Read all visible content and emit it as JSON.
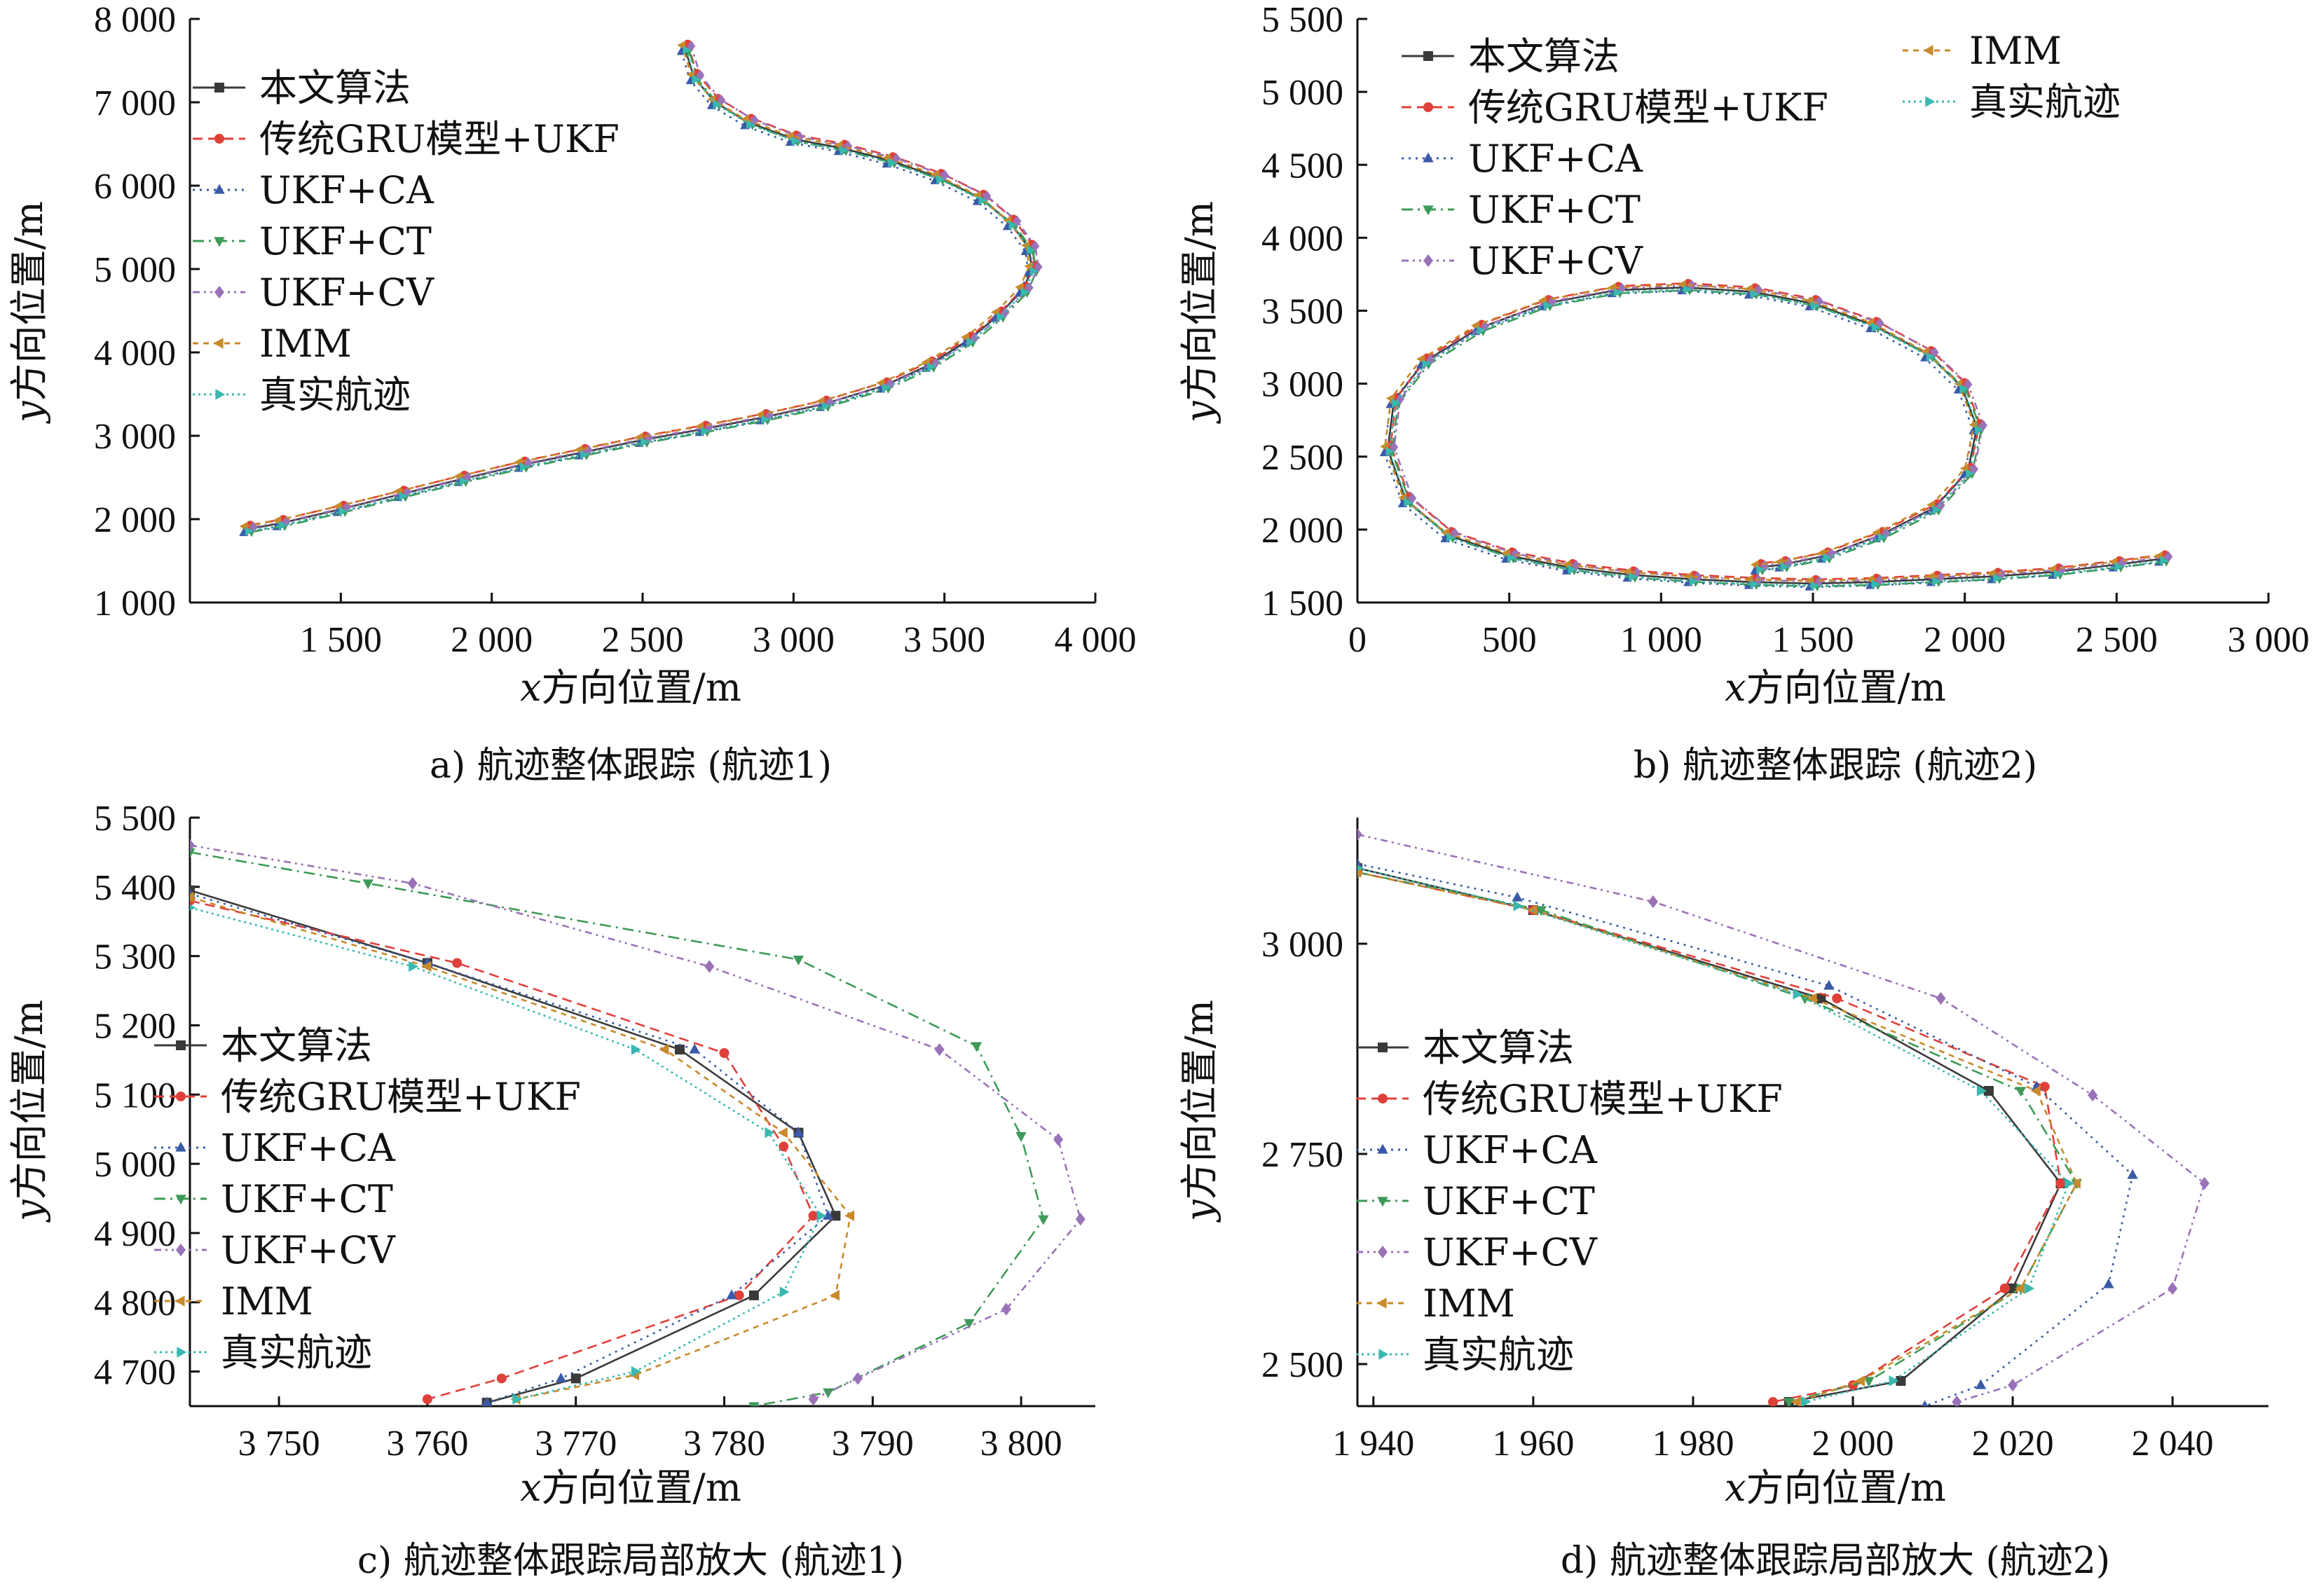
{
  "colors": {
    "本文算法": "#3a3a3a",
    "传统GRU模型+UKF": "#e0403a",
    "UKF+CA": "#3a5aa8",
    "UKF+CT": "#3d9a58",
    "UKF+CV": "#9a72b8",
    "IMM": "#c88a2a",
    "真实航迹": "#3ab8b0"
  },
  "legend_labels": [
    "本文算法",
    "传统GRU模型+UKF",
    "UKF+CA",
    "UKF+CT",
    "UKF+CV",
    "IMM",
    "真实航迹"
  ],
  "chart_data": [
    {
      "id": "a",
      "type": "line",
      "caption": "a) 航迹整体跟踪 (航迹1)",
      "xlabel_var": "x",
      "xlabel_rest": "方向位置/m",
      "ylabel_var": "y",
      "ylabel_rest": "方向位置/m",
      "xlim": [
        1000,
        4000
      ],
      "ylim": [
        1000,
        8000
      ],
      "xticks": [
        1500,
        2000,
        2500,
        3000,
        3500,
        4000
      ],
      "xtick_labels": [
        "1 500",
        "2 000",
        "2 500",
        "3 000",
        "3 500",
        "4 000"
      ],
      "yticks": [
        1000,
        2000,
        3000,
        4000,
        5000,
        6000,
        7000,
        8000
      ],
      "ytick_labels": [
        "1 000",
        "2 000",
        "3 000",
        "4 000",
        "5 000",
        "6 000",
        "7 000",
        "8 000"
      ],
      "legend_position": "top-left",
      "legend_columns": 1,
      "track": {
        "x": [
          1190,
          1300,
          1500,
          1700,
          1900,
          2100,
          2300,
          2500,
          2700,
          2900,
          3100,
          3300,
          3450,
          3580,
          3680,
          3760,
          3790,
          3780,
          3720,
          3620,
          3480,
          3320,
          3160,
          3000,
          2850,
          2740,
          2670,
          2640
        ],
        "y": [
          1880,
          1950,
          2120,
          2300,
          2480,
          2650,
          2800,
          2950,
          3080,
          3220,
          3380,
          3600,
          3850,
          4150,
          4450,
          4750,
          5000,
          5250,
          5550,
          5850,
          6100,
          6300,
          6450,
          6560,
          6760,
          7000,
          7300,
          7650
        ]
      }
    },
    {
      "id": "b",
      "type": "line",
      "caption": "b) 航迹整体跟踪 (航迹2)",
      "xlabel_var": "x",
      "xlabel_rest": "方向位置/m",
      "ylabel_var": "y",
      "ylabel_rest": "方向位置/m",
      "xlim": [
        0,
        3000
      ],
      "ylim": [
        1500,
        5500
      ],
      "xticks": [
        0,
        500,
        1000,
        1500,
        2000,
        2500,
        3000
      ],
      "xtick_labels": [
        "0",
        "500",
        "1 000",
        "1 500",
        "2 000",
        "2 500",
        "3 000"
      ],
      "yticks": [
        1500,
        2000,
        2500,
        3000,
        3500,
        4000,
        4500,
        5000,
        5500
      ],
      "ytick_labels": [
        "1 500",
        "2 000",
        "2 500",
        "3 000",
        "3 500",
        "4 000",
        "4 500",
        "5 000",
        "5 500"
      ],
      "legend_position": "top",
      "legend_columns": 2,
      "track": {
        "x": [
          2650,
          2500,
          2300,
          2100,
          1900,
          1700,
          1500,
          1300,
          1100,
          900,
          700,
          500,
          300,
          160,
          100,
          120,
          220,
          400,
          620,
          850,
          1080,
          1300,
          1500,
          1700,
          1880,
          1990,
          2040,
          2010,
          1900,
          1720,
          1540,
          1400,
          1320
        ],
        "y": [
          1800,
          1760,
          1710,
          1680,
          1660,
          1640,
          1630,
          1640,
          1660,
          1690,
          1740,
          1820,
          1960,
          2200,
          2550,
          2880,
          3150,
          3380,
          3550,
          3640,
          3660,
          3630,
          3550,
          3400,
          3200,
          2980,
          2700,
          2400,
          2150,
          1960,
          1820,
          1760,
          1740
        ]
      }
    },
    {
      "id": "c",
      "type": "line",
      "caption": "c) 航迹整体跟踪局部放大 (航迹1)",
      "xlabel_var": "x",
      "xlabel_rest": "方向位置/m",
      "ylabel_var": "y",
      "ylabel_rest": "方向位置/m",
      "xlim": [
        3744,
        3805
      ],
      "ylim": [
        4650,
        5500
      ],
      "xticks": [
        3750,
        3760,
        3770,
        3780,
        3790,
        3800
      ],
      "xtick_labels": [
        "3 750",
        "3 760",
        "3 770",
        "3 780",
        "3 790",
        "3 800"
      ],
      "yticks": [
        4700,
        4800,
        4900,
        5000,
        5100,
        5200,
        5300,
        5400,
        5500
      ],
      "ytick_labels": [
        "4 700",
        "4 800",
        "4 900",
        "5 000",
        "5 100",
        "5 200",
        "5 300",
        "5 400",
        "5 500"
      ],
      "legend_position": "left",
      "legend_columns": 1,
      "series": [
        {
          "name": "本文算法",
          "x": [
            3744,
            3760,
            3777,
            3785,
            3787.5,
            3782,
            3770,
            3764
          ],
          "y": [
            5395,
            5290,
            5165,
            5045,
            4925,
            4810,
            4690,
            4655
          ]
        },
        {
          "name": "传统GRU模型+UKF",
          "x": [
            3744,
            3762,
            3780,
            3784,
            3786,
            3781,
            3765,
            3760
          ],
          "y": [
            5380,
            5290,
            5160,
            5025,
            4925,
            4810,
            4690,
            4660
          ]
        },
        {
          "name": "UKF+CA",
          "x": [
            3744,
            3760,
            3778,
            3785,
            3787,
            3780.5,
            3769,
            3764
          ],
          "y": [
            5390,
            5290,
            5165,
            5045,
            4925,
            4810,
            4690,
            4655
          ]
        },
        {
          "name": "UKF+CT",
          "x": [
            3744,
            3756,
            3785,
            3797,
            3800,
            3801.5,
            3796.5,
            3787,
            3782
          ],
          "y": [
            5450,
            5405,
            5295,
            5170,
            5040,
            4920,
            4770,
            4670,
            4650
          ]
        },
        {
          "name": "UKF+CV",
          "x": [
            3744,
            3759,
            3779,
            3794.5,
            3802.5,
            3804,
            3799,
            3789,
            3786
          ],
          "y": [
            5460,
            5405,
            5285,
            5165,
            5035,
            4920,
            4790,
            4690,
            4660
          ]
        },
        {
          "name": "IMM",
          "x": [
            3744,
            3760,
            3776,
            3784,
            3788.5,
            3787.5,
            3774,
            3766
          ],
          "y": [
            5385,
            5285,
            5165,
            5045,
            4925,
            4810,
            4695,
            4660
          ]
        },
        {
          "name": "真实航迹",
          "x": [
            3744,
            3759,
            3774,
            3783,
            3786.5,
            3784,
            3774,
            3766
          ],
          "y": [
            5370,
            5285,
            5165,
            5045,
            4925,
            4815,
            4700,
            4660
          ]
        }
      ]
    },
    {
      "id": "d",
      "type": "line",
      "caption": "d) 航迹整体跟踪局部放大 (航迹2)",
      "xlabel_var": "x",
      "xlabel_rest": "方向位置/m",
      "ylabel_var": "y",
      "ylabel_rest": "方向位置/m",
      "xlim": [
        1938,
        2052
      ],
      "ylim": [
        2450,
        3150
      ],
      "xticks": [
        1940,
        1960,
        1980,
        2000,
        2020,
        2040
      ],
      "xtick_labels": [
        "1 940",
        "1 960",
        "1 980",
        "2 000",
        "2 020",
        "2 040"
      ],
      "yticks": [
        2500,
        2750,
        3000
      ],
      "ytick_labels": [
        "2 500",
        "2 750",
        "3 000"
      ],
      "legend_position": "left",
      "legend_columns": 1,
      "series": [
        {
          "name": "本文算法",
          "x": [
            1938,
            1960,
            1996,
            2017,
            2026,
            2020,
            2006,
            1992
          ],
          "y": [
            3090,
            3040,
            2935,
            2825,
            2715,
            2590,
            2480,
            2455
          ]
        },
        {
          "name": "传统GRU模型+UKF",
          "x": [
            1938,
            1960,
            1998,
            2024,
            2026,
            2019,
            2000,
            1990
          ],
          "y": [
            3085,
            3040,
            2935,
            2830,
            2715,
            2590,
            2475,
            2455
          ]
        },
        {
          "name": "UKF+CA",
          "x": [
            1938,
            1958,
            1997,
            2023,
            2035,
            2032,
            2016,
            2009
          ],
          "y": [
            3095,
            3055,
            2950,
            2830,
            2725,
            2595,
            2475,
            2450
          ]
        },
        {
          "name": "UKF+CT",
          "x": [
            1938,
            1961,
            1994,
            2021,
            2028,
            2021,
            2002,
            1992
          ],
          "y": [
            3085,
            3040,
            2935,
            2825,
            2715,
            2590,
            2480,
            2455
          ]
        },
        {
          "name": "UKF+CV",
          "x": [
            1938,
            1975,
            2011,
            2030,
            2044,
            2040,
            2020,
            2013
          ],
          "y": [
            3130,
            3050,
            2935,
            2820,
            2715,
            2590,
            2475,
            2455
          ]
        },
        {
          "name": "IMM",
          "x": [
            1938,
            1960,
            1995,
            2023,
            2028,
            2021,
            2001,
            1993
          ],
          "y": [
            3085,
            3040,
            2935,
            2825,
            2715,
            2590,
            2480,
            2455
          ]
        },
        {
          "name": "真实航迹",
          "x": [
            1938,
            1958,
            1993,
            2016,
            2027,
            2022,
            2005,
            1994
          ],
          "y": [
            3090,
            3045,
            2940,
            2825,
            2715,
            2590,
            2480,
            2455
          ]
        }
      ]
    }
  ]
}
